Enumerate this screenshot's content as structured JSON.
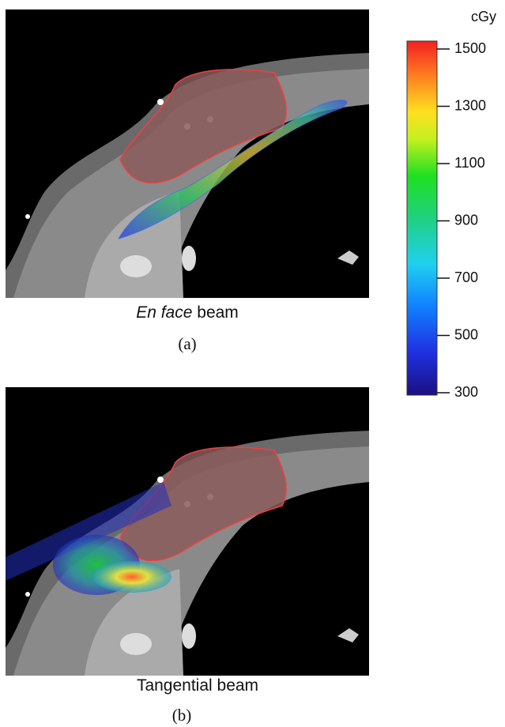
{
  "panels": [
    {
      "caption_emphasis": "En face",
      "caption_rest": "beam",
      "label": "(a)"
    },
    {
      "caption": "Tangential beam",
      "label": "(b)"
    }
  ],
  "colorbar": {
    "unit": "cGy",
    "ticks": [
      300,
      500,
      700,
      900,
      1100,
      1300,
      1500
    ]
  }
}
